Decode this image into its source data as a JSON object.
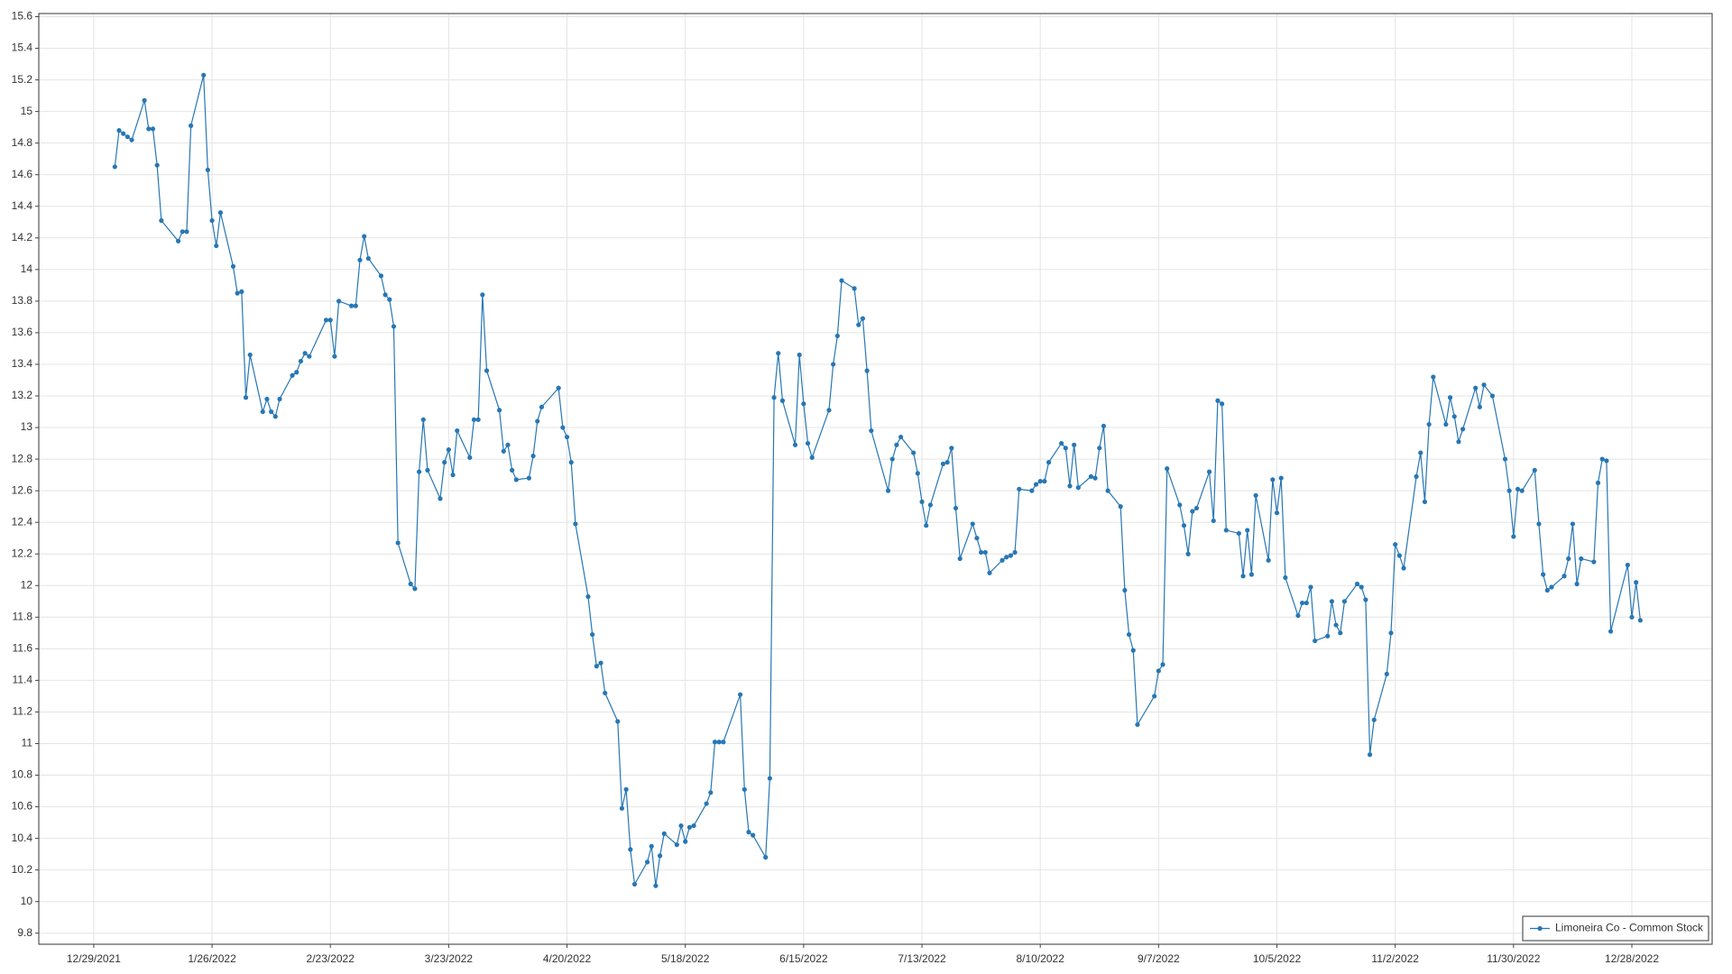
{
  "chart_data": {
    "type": "line",
    "x": [
      "1/3/2022",
      "1/4/2022",
      "1/5/2022",
      "1/6/2022",
      "1/7/2022",
      "1/10/2022",
      "1/11/2022",
      "1/12/2022",
      "1/13/2022",
      "1/14/2022",
      "1/18/2022",
      "1/19/2022",
      "1/20/2022",
      "1/21/2022",
      "1/24/2022",
      "1/25/2022",
      "1/26/2022",
      "1/27/2022",
      "1/28/2022",
      "1/31/2022",
      "2/1/2022",
      "2/2/2022",
      "2/3/2022",
      "2/4/2022",
      "2/7/2022",
      "2/8/2022",
      "2/9/2022",
      "2/10/2022",
      "2/11/2022",
      "2/14/2022",
      "2/15/2022",
      "2/16/2022",
      "2/17/2022",
      "2/18/2022",
      "2/22/2022",
      "2/23/2022",
      "2/24/2022",
      "2/25/2022",
      "2/28/2022",
      "3/1/2022",
      "3/2/2022",
      "3/3/2022",
      "3/4/2022",
      "3/7/2022",
      "3/8/2022",
      "3/9/2022",
      "3/10/2022",
      "3/11/2022",
      "3/14/2022",
      "3/15/2022",
      "3/16/2022",
      "3/17/2022",
      "3/18/2022",
      "3/21/2022",
      "3/22/2022",
      "3/23/2022",
      "3/24/2022",
      "3/25/2022",
      "3/28/2022",
      "3/29/2022",
      "3/30/2022",
      "3/31/2022",
      "4/1/2022",
      "4/4/2022",
      "4/5/2022",
      "4/6/2022",
      "4/7/2022",
      "4/8/2022",
      "4/11/2022",
      "4/12/2022",
      "4/13/2022",
      "4/14/2022",
      "4/18/2022",
      "4/19/2022",
      "4/20/2022",
      "4/21/2022",
      "4/22/2022",
      "4/25/2022",
      "4/26/2022",
      "4/27/2022",
      "4/28/2022",
      "4/29/2022",
      "5/2/2022",
      "5/3/2022",
      "5/4/2022",
      "5/5/2022",
      "5/6/2022",
      "5/9/2022",
      "5/10/2022",
      "5/11/2022",
      "5/12/2022",
      "5/13/2022",
      "5/16/2022",
      "5/17/2022",
      "5/18/2022",
      "5/19/2022",
      "5/20/2022",
      "5/23/2022",
      "5/24/2022",
      "5/25/2022",
      "5/26/2022",
      "5/27/2022",
      "5/31/2022",
      "6/1/2022",
      "6/2/2022",
      "6/3/2022",
      "6/6/2022",
      "6/7/2022",
      "6/8/2022",
      "6/9/2022",
      "6/10/2022",
      "6/13/2022",
      "6/14/2022",
      "6/15/2022",
      "6/16/2022",
      "6/17/2022",
      "6/21/2022",
      "6/22/2022",
      "6/23/2022",
      "6/24/2022",
      "6/27/2022",
      "6/28/2022",
      "6/29/2022",
      "6/30/2022",
      "7/1/2022",
      "7/5/2022",
      "7/6/2022",
      "7/7/2022",
      "7/8/2022",
      "7/11/2022",
      "7/12/2022",
      "7/13/2022",
      "7/14/2022",
      "7/15/2022",
      "7/18/2022",
      "7/19/2022",
      "7/20/2022",
      "7/21/2022",
      "7/22/2022",
      "7/25/2022",
      "7/26/2022",
      "7/27/2022",
      "7/28/2022",
      "7/29/2022",
      "8/1/2022",
      "8/2/2022",
      "8/3/2022",
      "8/4/2022",
      "8/5/2022",
      "8/8/2022",
      "8/9/2022",
      "8/10/2022",
      "8/11/2022",
      "8/12/2022",
      "8/15/2022",
      "8/16/2022",
      "8/17/2022",
      "8/18/2022",
      "8/19/2022",
      "8/22/2022",
      "8/23/2022",
      "8/24/2022",
      "8/25/2022",
      "8/26/2022",
      "8/29/2022",
      "8/30/2022",
      "8/31/2022",
      "9/1/2022",
      "9/2/2022",
      "9/6/2022",
      "9/7/2022",
      "9/8/2022",
      "9/9/2022",
      "9/12/2022",
      "9/13/2022",
      "9/14/2022",
      "9/15/2022",
      "9/16/2022",
      "9/19/2022",
      "9/20/2022",
      "9/21/2022",
      "9/22/2022",
      "9/23/2022",
      "9/26/2022",
      "9/27/2022",
      "9/28/2022",
      "9/29/2022",
      "9/30/2022",
      "10/3/2022",
      "10/4/2022",
      "10/5/2022",
      "10/6/2022",
      "10/7/2022",
      "10/10/2022",
      "10/11/2022",
      "10/12/2022",
      "10/13/2022",
      "10/14/2022",
      "10/17/2022",
      "10/18/2022",
      "10/19/2022",
      "10/20/2022",
      "10/21/2022",
      "10/24/2022",
      "10/25/2022",
      "10/26/2022",
      "10/27/2022",
      "10/28/2022",
      "10/31/2022",
      "11/1/2022",
      "11/2/2022",
      "11/3/2022",
      "11/4/2022",
      "11/7/2022",
      "11/8/2022",
      "11/9/2022",
      "11/10/2022",
      "11/11/2022",
      "11/14/2022",
      "11/15/2022",
      "11/16/2022",
      "11/17/2022",
      "11/18/2022",
      "11/21/2022",
      "11/22/2022",
      "11/23/2022",
      "11/25/2022",
      "11/28/2022",
      "11/29/2022",
      "11/30/2022",
      "12/1/2022",
      "12/2/2022",
      "12/5/2022",
      "12/6/2022",
      "12/7/2022",
      "12/8/2022",
      "12/9/2022",
      "12/12/2022",
      "12/13/2022",
      "12/14/2022",
      "12/15/2022",
      "12/16/2022",
      "12/19/2022",
      "12/20/2022",
      "12/21/2022",
      "12/22/2022",
      "12/23/2022",
      "12/27/2022",
      "12/28/2022",
      "12/29/2022",
      "12/30/2022"
    ],
    "series": [
      {
        "name": "Limoneira Co - Common Stock",
        "color": "#2777b4",
        "values": [
          14.65,
          14.88,
          14.86,
          14.84,
          14.82,
          15.07,
          14.89,
          14.89,
          14.66,
          14.31,
          14.18,
          14.24,
          14.24,
          14.91,
          15.23,
          14.63,
          14.31,
          14.15,
          14.36,
          14.02,
          13.85,
          13.86,
          13.19,
          13.46,
          13.1,
          13.18,
          13.1,
          13.07,
          13.18,
          13.33,
          13.35,
          13.42,
          13.47,
          13.45,
          13.68,
          13.68,
          13.45,
          13.8,
          13.77,
          13.77,
          14.06,
          14.21,
          14.07,
          13.96,
          13.84,
          13.81,
          13.64,
          12.27,
          12.01,
          11.98,
          12.72,
          13.05,
          12.73,
          12.55,
          12.78,
          12.86,
          12.7,
          12.98,
          12.81,
          13.05,
          13.05,
          13.84,
          13.36,
          13.11,
          12.85,
          12.89,
          12.73,
          12.67,
          12.68,
          12.82,
          13.04,
          13.13,
          13.25,
          13.0,
          12.94,
          12.78,
          12.39,
          11.93,
          11.69,
          11.49,
          11.51,
          11.32,
          11.14,
          10.59,
          10.71,
          10.33,
          10.11,
          10.25,
          10.35,
          10.1,
          10.29,
          10.43,
          10.36,
          10.48,
          10.38,
          10.47,
          10.48,
          10.62,
          10.69,
          11.01,
          11.01,
          11.01,
          11.31,
          10.71,
          10.44,
          10.42,
          10.28,
          10.78,
          13.19,
          13.47,
          13.17,
          12.89,
          13.46,
          13.15,
          12.9,
          12.81,
          13.11,
          13.4,
          13.58,
          13.93,
          13.88,
          13.65,
          13.69,
          13.36,
          12.98,
          12.6,
          12.8,
          12.89,
          12.94,
          12.84,
          12.71,
          12.53,
          12.38,
          12.51,
          12.77,
          12.78,
          12.87,
          12.49,
          12.17,
          12.39,
          12.3,
          12.21,
          12.21,
          12.08,
          12.16,
          12.18,
          12.19,
          12.21,
          12.61,
          12.6,
          12.64,
          12.66,
          12.66,
          12.78,
          12.9,
          12.87,
          12.63,
          12.89,
          12.62,
          12.69,
          12.68,
          12.87,
          13.01,
          12.6,
          12.5,
          11.97,
          11.69,
          11.59,
          11.12,
          11.3,
          11.46,
          11.5,
          12.74,
          12.51,
          12.38,
          12.2,
          12.47,
          12.49,
          12.72,
          12.41,
          13.17,
          13.15,
          12.35,
          12.33,
          12.06,
          12.35,
          12.07,
          12.57,
          12.16,
          12.67,
          12.46,
          12.68,
          12.05,
          11.81,
          11.89,
          11.89,
          11.99,
          11.65,
          11.68,
          11.9,
          11.75,
          11.7,
          11.9,
          12.01,
          11.99,
          11.91,
          10.93,
          11.15,
          11.44,
          11.7,
          12.26,
          12.19,
          12.11,
          12.69,
          12.84,
          12.53,
          13.02,
          13.32,
          13.02,
          13.19,
          13.07,
          12.91,
          12.99,
          13.25,
          13.13,
          13.27,
          13.2,
          12.8,
          12.6,
          12.31,
          12.61,
          12.6,
          12.73,
          12.39,
          12.07,
          11.97,
          11.99,
          12.06,
          12.17,
          12.39,
          12.01,
          12.17,
          12.15,
          12.65,
          12.8,
          12.79,
          11.71,
          12.13,
          11.8,
          12.02,
          11.78
        ]
      }
    ],
    "xlim": [
      "12/16/2021",
      "1/16/2023"
    ],
    "xticks": [
      "12/29/2021",
      "1/26/2022",
      "2/23/2022",
      "3/23/2022",
      "4/20/2022",
      "5/18/2022",
      "6/15/2022",
      "7/13/2022",
      "8/10/2022",
      "9/7/2022",
      "10/5/2022",
      "11/2/2022",
      "11/30/2022",
      "12/28/2022"
    ],
    "ylim": [
      9.73,
      15.62
    ],
    "yticks": [
      9.8,
      10,
      10.2,
      10.4,
      10.6,
      10.8,
      11,
      11.2,
      11.4,
      11.6,
      11.8,
      12,
      12.2,
      12.4,
      12.6,
      12.8,
      13,
      13.2,
      13.4,
      13.6,
      13.8,
      14,
      14.2,
      14.4,
      14.6,
      14.8,
      15,
      15.2,
      15.4,
      15.6
    ],
    "grid": true,
    "markers": true,
    "legend": "lower right"
  }
}
